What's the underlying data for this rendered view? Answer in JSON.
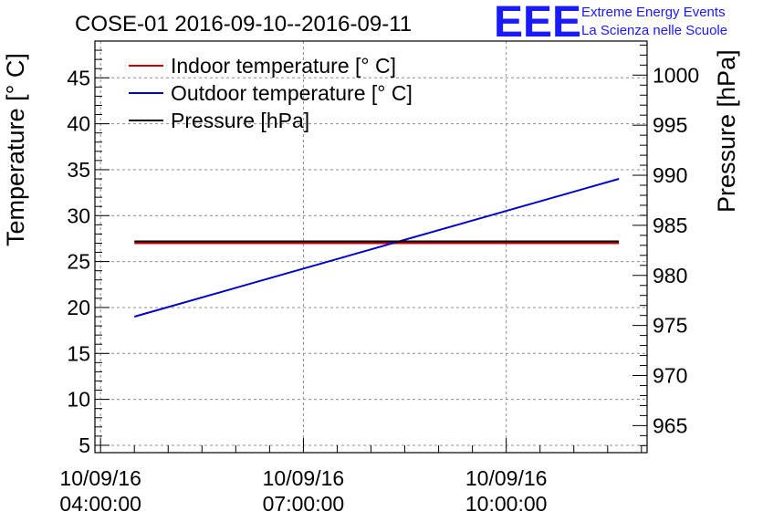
{
  "logo": {
    "mark": "EEE",
    "line1": "Extreme Energy Events",
    "line2": "La Scienza nelle Scuole",
    "color": "#1a1aff"
  },
  "chart_data": {
    "type": "line",
    "title": "COSE-01 2016-09-10--2016-09-11",
    "ylabel": "Temperature [° C]",
    "y2label": "Pressure [hPa]",
    "xlabel": "",
    "x_ticks": [
      {
        "time": "04:00:00",
        "label_date": "10/09/16",
        "label_time": "04:00:00"
      },
      {
        "time": "07:00:00",
        "label_date": "10/09/16",
        "label_time": "07:00:00"
      },
      {
        "time": "10:00:00",
        "label_date": "10/09/16",
        "label_time": "10:00:00"
      }
    ],
    "xlim": [
      "03:55:00",
      "12:05:00"
    ],
    "ylim": [
      4.2,
      49
    ],
    "y2lim": [
      962.3,
      1003.4
    ],
    "y_ticks": [
      5,
      10,
      15,
      20,
      25,
      30,
      35,
      40,
      45
    ],
    "y2_ticks": [
      965,
      970,
      975,
      980,
      985,
      990,
      995,
      1000
    ],
    "grid": true,
    "legend_placement": "top-left",
    "series": [
      {
        "name": "Indoor temperature [° C]",
        "axis": "left",
        "color": "#cc0000",
        "x": [
          "04:30:00",
          "11:40:00"
        ],
        "values": [
          27.0,
          27.0
        ]
      },
      {
        "name": "Outdoor temperature [° C]",
        "axis": "left",
        "color": "#0000cc",
        "x": [
          "04:30:00",
          "11:40:00"
        ],
        "values": [
          19.0,
          34.0
        ]
      },
      {
        "name": "Pressure [hPa]",
        "axis": "right",
        "color": "#000000",
        "x": [
          "04:30:00",
          "11:40:00"
        ],
        "values": [
          983.4,
          983.4
        ]
      }
    ]
  }
}
